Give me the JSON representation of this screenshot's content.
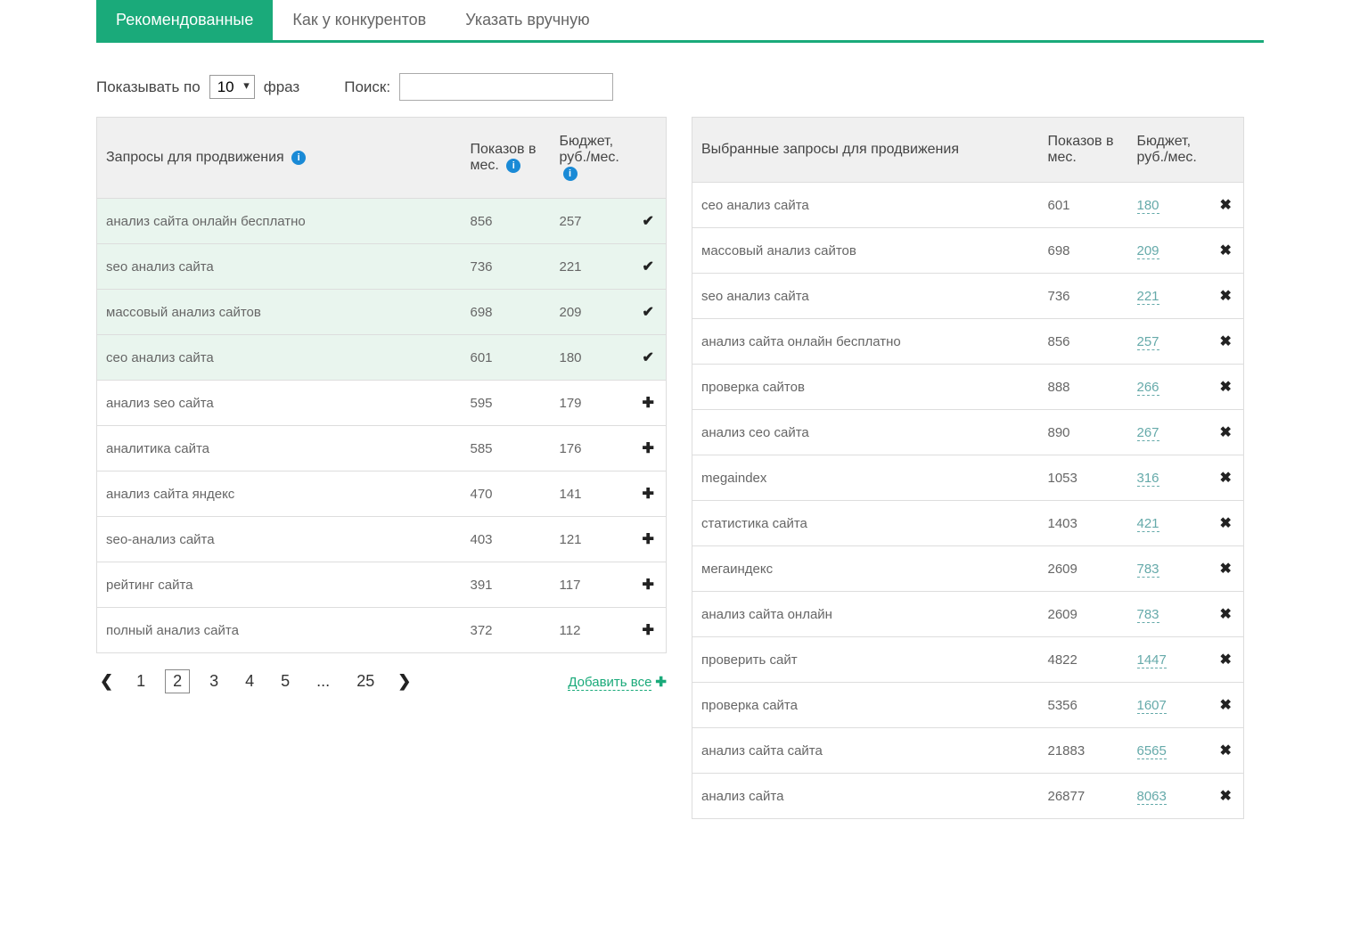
{
  "tabs": [
    {
      "label": "Рекомендованные",
      "active": true
    },
    {
      "label": "Как у конкурентов",
      "active": false
    },
    {
      "label": "Указать вручную",
      "active": false
    }
  ],
  "controls": {
    "show_per_label_before": "Показывать по",
    "show_per_label_after": "фраз",
    "show_per_value": "10",
    "search_label": "Поиск:",
    "search_value": ""
  },
  "left_table": {
    "headers": {
      "query": "Запросы для продвижения",
      "views": "Показов в мес.",
      "budget": "Бюджет, руб./мес."
    },
    "rows": [
      {
        "query": "анализ сайта онлайн бесплатно",
        "views": "856",
        "budget": "257",
        "selected": true
      },
      {
        "query": "seo анализ сайта",
        "views": "736",
        "budget": "221",
        "selected": true
      },
      {
        "query": "массовый анализ сайтов",
        "views": "698",
        "budget": "209",
        "selected": true
      },
      {
        "query": "сео анализ сайта",
        "views": "601",
        "budget": "180",
        "selected": true
      },
      {
        "query": "анализ seo сайта",
        "views": "595",
        "budget": "179",
        "selected": false
      },
      {
        "query": "аналитика сайта",
        "views": "585",
        "budget": "176",
        "selected": false
      },
      {
        "query": "анализ сайта яндекс",
        "views": "470",
        "budget": "141",
        "selected": false
      },
      {
        "query": "seo-анализ сайта",
        "views": "403",
        "budget": "121",
        "selected": false
      },
      {
        "query": "рейтинг сайта",
        "views": "391",
        "budget": "117",
        "selected": false
      },
      {
        "query": "полный анализ сайта",
        "views": "372",
        "budget": "112",
        "selected": false
      }
    ]
  },
  "right_table": {
    "headers": {
      "query": "Выбранные запросы для продвижения",
      "views": "Показов в мес.",
      "budget": "Бюджет, руб./мес."
    },
    "rows": [
      {
        "query": "сео анализ сайта",
        "views": "601",
        "budget": "180"
      },
      {
        "query": "массовый анализ сайтов",
        "views": "698",
        "budget": "209"
      },
      {
        "query": "seo анализ сайта",
        "views": "736",
        "budget": "221"
      },
      {
        "query": "анализ сайта онлайн бесплатно",
        "views": "856",
        "budget": "257"
      },
      {
        "query": "проверка сайтов",
        "views": "888",
        "budget": "266"
      },
      {
        "query": "анализ сео сайта",
        "views": "890",
        "budget": "267"
      },
      {
        "query": "megaindex",
        "views": "1053",
        "budget": "316"
      },
      {
        "query": "статистика сайта",
        "views": "1403",
        "budget": "421"
      },
      {
        "query": "мегаиндекс",
        "views": "2609",
        "budget": "783"
      },
      {
        "query": "анализ сайта онлайн",
        "views": "2609",
        "budget": "783"
      },
      {
        "query": "проверить сайт",
        "views": "4822",
        "budget": "1447"
      },
      {
        "query": "проверка сайта",
        "views": "5356",
        "budget": "1607"
      },
      {
        "query": "анализ сайта сайта",
        "views": "21883",
        "budget": "6565"
      },
      {
        "query": "анализ сайта",
        "views": "26877",
        "budget": "8063"
      }
    ]
  },
  "pagination": {
    "pages": [
      "1",
      "2",
      "3",
      "4",
      "5",
      "...",
      "25"
    ],
    "current": "2"
  },
  "add_all_label": "Добавить все",
  "colors": {
    "accent": "#1aaa7a",
    "info": "#1a8ad6",
    "row_selected_bg": "#e9f5ee",
    "header_bg": "#f0f0f0",
    "border": "#dddddd",
    "text": "#444444",
    "text_muted": "#666666",
    "budget_link": "#66aaaa"
  }
}
